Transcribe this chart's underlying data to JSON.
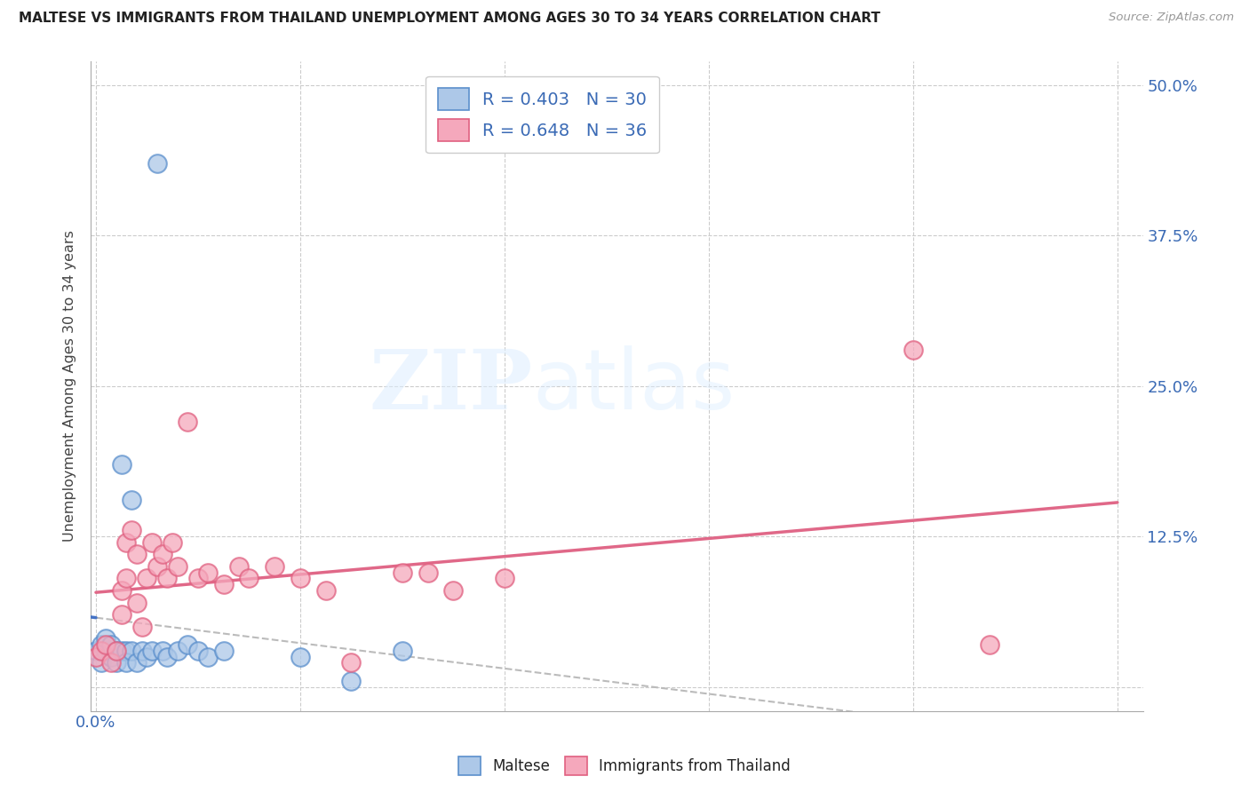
{
  "title": "MALTESE VS IMMIGRANTS FROM THAILAND UNEMPLOYMENT AMONG AGES 30 TO 34 YEARS CORRELATION CHART",
  "source": "Source: ZipAtlas.com",
  "ylabel": "Unemployment Among Ages 30 to 34 years",
  "xlim": [
    -0.001,
    0.205
  ],
  "ylim": [
    -0.02,
    0.52
  ],
  "xticks": [
    0.0,
    0.04,
    0.08,
    0.12,
    0.16,
    0.2
  ],
  "yticks": [
    0.0,
    0.125,
    0.25,
    0.375,
    0.5
  ],
  "maltese_R": 0.403,
  "maltese_N": 30,
  "thailand_R": 0.648,
  "thailand_N": 36,
  "maltese_color": "#adc8e8",
  "thailand_color": "#f5a8bc",
  "maltese_edge_color": "#5b8fcc",
  "thailand_edge_color": "#e06080",
  "maltese_line_color": "#4472c4",
  "thailand_line_color": "#e06888",
  "gray_dash_color": "#bbbbbb",
  "background_color": "#ffffff",
  "maltese_x": [
    0.0,
    0.001,
    0.001,
    0.002,
    0.002,
    0.003,
    0.003,
    0.004,
    0.004,
    0.005,
    0.005,
    0.006,
    0.006,
    0.007,
    0.007,
    0.008,
    0.009,
    0.01,
    0.011,
    0.012,
    0.013,
    0.014,
    0.016,
    0.018,
    0.02,
    0.022,
    0.025,
    0.04,
    0.05,
    0.06
  ],
  "maltese_y": [
    0.03,
    0.02,
    0.035,
    0.03,
    0.04,
    0.025,
    0.035,
    0.02,
    0.03,
    0.03,
    0.185,
    0.03,
    0.02,
    0.155,
    0.03,
    0.02,
    0.03,
    0.025,
    0.03,
    0.435,
    0.03,
    0.025,
    0.03,
    0.035,
    0.03,
    0.025,
    0.03,
    0.025,
    0.005,
    0.03
  ],
  "thailand_x": [
    0.0,
    0.001,
    0.002,
    0.003,
    0.004,
    0.005,
    0.005,
    0.006,
    0.006,
    0.007,
    0.008,
    0.008,
    0.009,
    0.01,
    0.011,
    0.012,
    0.013,
    0.014,
    0.015,
    0.016,
    0.018,
    0.02,
    0.022,
    0.025,
    0.028,
    0.03,
    0.035,
    0.04,
    0.045,
    0.05,
    0.06,
    0.065,
    0.07,
    0.08,
    0.16,
    0.175
  ],
  "thailand_y": [
    0.025,
    0.03,
    0.035,
    0.02,
    0.03,
    0.06,
    0.08,
    0.09,
    0.12,
    0.13,
    0.07,
    0.11,
    0.05,
    0.09,
    0.12,
    0.1,
    0.11,
    0.09,
    0.12,
    0.1,
    0.22,
    0.09,
    0.095,
    0.085,
    0.1,
    0.09,
    0.1,
    0.09,
    0.08,
    0.02,
    0.095,
    0.095,
    0.08,
    0.09,
    0.28,
    0.035
  ]
}
